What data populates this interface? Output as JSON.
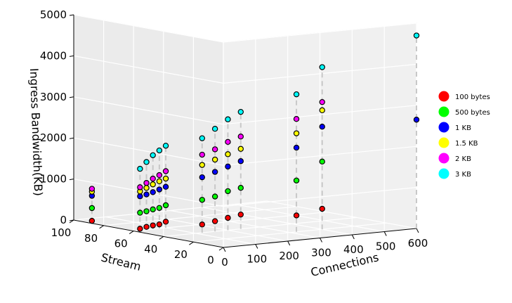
{
  "chart_data": {
    "type": "scatter",
    "projection": "3d",
    "xlabel": "Connections",
    "ylabel": "Stream",
    "zlabel": "Ingress Bandwidth(KB)",
    "xlim": [
      0,
      600
    ],
    "ylim": [
      0,
      100
    ],
    "zlim": [
      0,
      5000
    ],
    "x_ticks": [
      "0",
      "100",
      "200",
      "300",
      "400",
      "500",
      "600"
    ],
    "y_ticks": [
      "0",
      "20",
      "40",
      "60",
      "80",
      "100"
    ],
    "z_ticks": [
      "0",
      "1000",
      "2000",
      "3000",
      "4000",
      "5000"
    ],
    "grid": true,
    "stems": true,
    "legend_position": "right",
    "series": [
      {
        "name": "100 bytes",
        "color": "#ff0000",
        "points": [
          [
            10,
            90,
            40
          ],
          [
            20,
            60,
            40
          ],
          [
            40,
            60,
            70
          ],
          [
            60,
            60,
            90
          ],
          [
            80,
            60,
            100
          ],
          [
            100,
            60,
            150
          ],
          [
            120,
            40,
            200
          ],
          [
            160,
            40,
            250
          ],
          [
            200,
            40,
            300
          ],
          [
            240,
            40,
            350
          ],
          [
            320,
            20,
            400
          ],
          [
            400,
            20,
            500
          ]
        ]
      },
      {
        "name": "500 bytes",
        "color": "#00ff00",
        "points": [
          [
            10,
            90,
            350
          ],
          [
            20,
            60,
            430
          ],
          [
            40,
            60,
            450
          ],
          [
            60,
            60,
            480
          ],
          [
            80,
            60,
            500
          ],
          [
            100,
            60,
            550
          ],
          [
            120,
            40,
            800
          ],
          [
            160,
            40,
            850
          ],
          [
            200,
            40,
            950
          ],
          [
            240,
            40,
            1000
          ],
          [
            320,
            20,
            1250
          ],
          [
            400,
            20,
            1650
          ]
        ]
      },
      {
        "name": "1 KB",
        "color": "#0000ff",
        "points": [
          [
            10,
            90,
            650
          ],
          [
            20,
            60,
            830
          ],
          [
            40,
            60,
            860
          ],
          [
            60,
            60,
            900
          ],
          [
            80,
            60,
            950
          ],
          [
            100,
            60,
            1000
          ],
          [
            120,
            40,
            1350
          ],
          [
            160,
            40,
            1450
          ],
          [
            200,
            40,
            1550
          ],
          [
            240,
            40,
            1650
          ],
          [
            320,
            20,
            2050
          ],
          [
            400,
            20,
            2500
          ],
          [
            600,
            0,
            2650
          ]
        ]
      },
      {
        "name": "1.5 KB",
        "color": "#ffff00",
        "points": [
          [
            10,
            90,
            750
          ],
          [
            20,
            60,
            950
          ],
          [
            40,
            60,
            1020
          ],
          [
            60,
            60,
            1090
          ],
          [
            80,
            60,
            1150
          ],
          [
            100,
            60,
            1200
          ],
          [
            120,
            40,
            1650
          ],
          [
            160,
            40,
            1750
          ],
          [
            200,
            40,
            1850
          ],
          [
            240,
            40,
            1950
          ],
          [
            320,
            20,
            2400
          ],
          [
            400,
            20,
            2900
          ]
        ]
      },
      {
        "name": "2 KB",
        "color": "#ff00ff",
        "points": [
          [
            10,
            90,
            820
          ],
          [
            20,
            60,
            1050
          ],
          [
            40,
            60,
            1140
          ],
          [
            60,
            60,
            1230
          ],
          [
            80,
            60,
            1300
          ],
          [
            100,
            60,
            1380
          ],
          [
            120,
            40,
            1900
          ],
          [
            160,
            40,
            2000
          ],
          [
            200,
            40,
            2150
          ],
          [
            240,
            40,
            2250
          ],
          [
            320,
            20,
            2750
          ],
          [
            400,
            20,
            3100
          ]
        ]
      },
      {
        "name": "3 KB",
        "color": "#00ffff",
        "points": [
          [
            20,
            60,
            1500
          ],
          [
            40,
            60,
            1650
          ],
          [
            60,
            60,
            1800
          ],
          [
            80,
            60,
            1900
          ],
          [
            100,
            60,
            2000
          ],
          [
            120,
            40,
            2300
          ],
          [
            160,
            40,
            2500
          ],
          [
            200,
            40,
            2700
          ],
          [
            240,
            40,
            2850
          ],
          [
            320,
            20,
            3350
          ],
          [
            400,
            20,
            3950
          ],
          [
            600,
            0,
            4700
          ]
        ]
      }
    ]
  }
}
